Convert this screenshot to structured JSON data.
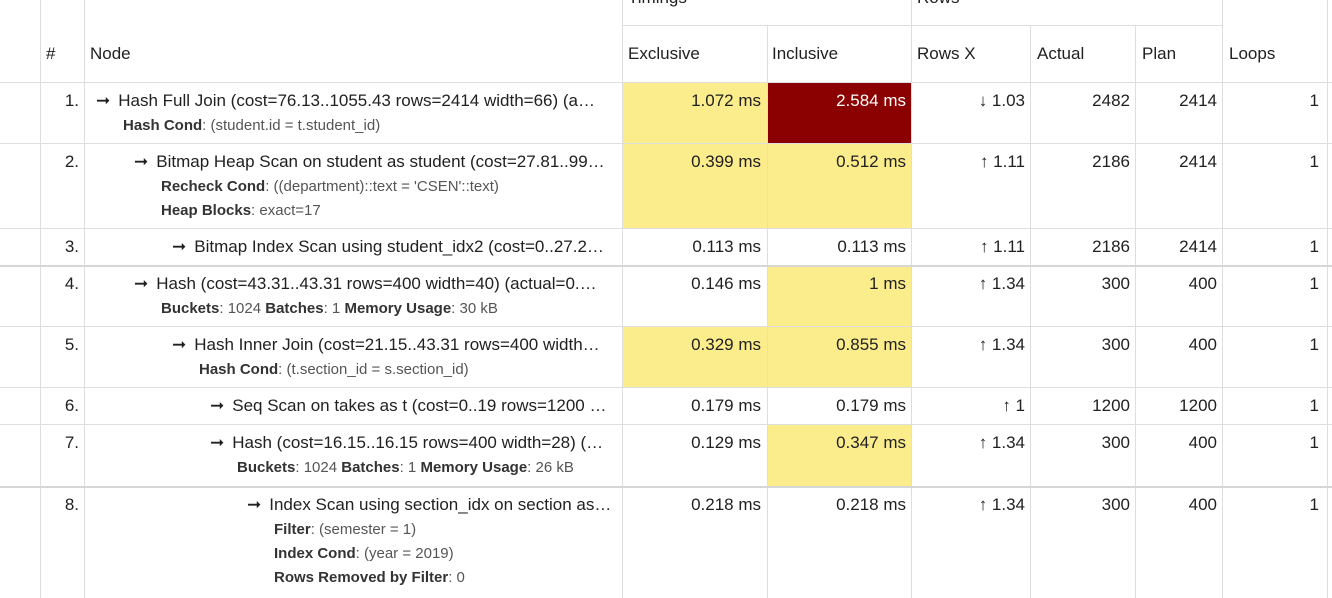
{
  "colors": {
    "yellow": "#fbec8c",
    "darkred": "#8b0000",
    "grid": "#dedede"
  },
  "header": {
    "group_timings": "Timings",
    "group_rows": "Rows",
    "num": "#",
    "node": "Node",
    "exclusive": "Exclusive",
    "inclusive": "Inclusive",
    "rows_x": "Rows X",
    "actual": "Actual",
    "plan": "Plan",
    "loops": "Loops"
  },
  "rows": [
    {
      "num": "1.",
      "title": "Hash Full Join (cost=76.13..1055.43 rows=2414 width=66) (a…",
      "details": [
        {
          "k": "Hash Cond",
          "v": ": (student.id = t.student_id)"
        }
      ],
      "exclusive": "1.072 ms",
      "inclusive": "2.584 ms",
      "rows_x": "↓ 1.03",
      "actual": "2482",
      "plan": "2414",
      "loops": "1"
    },
    {
      "num": "2.",
      "title": "Bitmap Heap Scan on student as student (cost=27.81..99…",
      "details": [
        {
          "k": "Recheck Cond",
          "v": ": ((department)::text = 'CSEN'::text)"
        },
        {
          "k": "Heap Blocks",
          "v": ": exact=17"
        }
      ],
      "exclusive": "0.399 ms",
      "inclusive": "0.512 ms",
      "rows_x": "↑ 1.11",
      "actual": "2186",
      "plan": "2414",
      "loops": "1"
    },
    {
      "num": "3.",
      "title": "Bitmap Index Scan using student_idx2 (cost=0..27.2…",
      "details": [],
      "exclusive": "0.113 ms",
      "inclusive": "0.113 ms",
      "rows_x": "↑ 1.11",
      "actual": "2186",
      "plan": "2414",
      "loops": "1"
    },
    {
      "num": "4.",
      "title": "Hash (cost=43.31..43.31 rows=400 width=40) (actual=0.…",
      "details": [
        {
          "k": "Buckets",
          "v": ": 1024 ",
          "k2": "Batches",
          "v2": ": 1 ",
          "k3": "Memory Usage",
          "v3": ": 30 kB"
        }
      ],
      "exclusive": "0.146 ms",
      "inclusive": "1 ms",
      "rows_x": "↑ 1.34",
      "actual": "300",
      "plan": "400",
      "loops": "1"
    },
    {
      "num": "5.",
      "title": "Hash Inner Join (cost=21.15..43.31 rows=400 width…",
      "details": [
        {
          "k": "Hash Cond",
          "v": ": (t.section_id = s.section_id)"
        }
      ],
      "exclusive": "0.329 ms",
      "inclusive": "0.855 ms",
      "rows_x": "↑ 1.34",
      "actual": "300",
      "plan": "400",
      "loops": "1"
    },
    {
      "num": "6.",
      "title": "Seq Scan on takes as t (cost=0..19 rows=1200 …",
      "details": [],
      "exclusive": "0.179 ms",
      "inclusive": "0.179 ms",
      "rows_x": "↑ 1",
      "actual": "1200",
      "plan": "1200",
      "loops": "1"
    },
    {
      "num": "7.",
      "title": "Hash (cost=16.15..16.15 rows=400 width=28) (…",
      "details": [
        {
          "k": "Buckets",
          "v": ": 1024 ",
          "k2": "Batches",
          "v2": ": 1 ",
          "k3": "Memory Usage",
          "v3": ": 26 kB"
        }
      ],
      "exclusive": "0.129 ms",
      "inclusive": "0.347 ms",
      "rows_x": "↑ 1.34",
      "actual": "300",
      "plan": "400",
      "loops": "1"
    },
    {
      "num": "8.",
      "title": "Index Scan using section_idx on section as…",
      "details": [
        {
          "k": "Filter",
          "v": ": (semester = 1)"
        },
        {
          "k": "Index Cond",
          "v": ": (year = 2019)"
        },
        {
          "k": "Rows Removed by Filter",
          "v": ": 0"
        }
      ],
      "exclusive": "0.218 ms",
      "inclusive": "0.218 ms",
      "rows_x": "↑ 1.34",
      "actual": "300",
      "plan": "400",
      "loops": "1"
    }
  ]
}
